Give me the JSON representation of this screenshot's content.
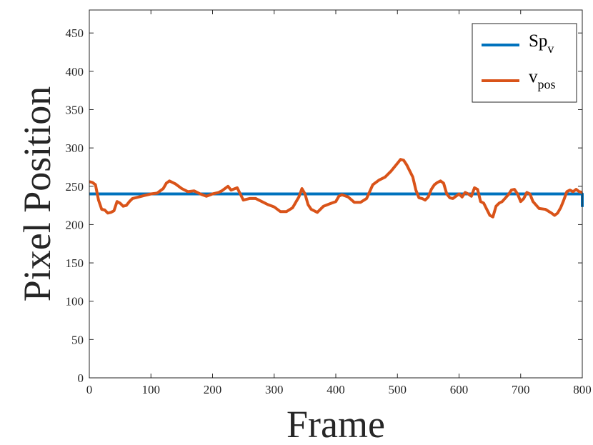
{
  "chart_data": {
    "type": "line",
    "xlabel": "Frame",
    "ylabel": "Pixel Position",
    "xlim": [
      0,
      800
    ],
    "ylim": [
      0,
      480
    ],
    "x_ticks": [
      "0",
      "100",
      "200",
      "300",
      "400",
      "500",
      "600",
      "700",
      "800"
    ],
    "y_ticks": [
      "0",
      "50",
      "100",
      "150",
      "200",
      "250",
      "300",
      "350",
      "400",
      "450"
    ],
    "grid": false,
    "legend_position": "top-right",
    "series": [
      {
        "name": "Sp_v",
        "legend_main": "Sp",
        "legend_sub": "v",
        "color": "#0072BD",
        "x": [
          0,
          800,
          800
        ],
        "y": [
          240,
          240,
          223
        ]
      },
      {
        "name": "v_pos",
        "legend_main": "v",
        "legend_sub": "pos",
        "color": "#D95319",
        "x": [
          0,
          5,
          10,
          15,
          20,
          25,
          30,
          35,
          40,
          45,
          50,
          55,
          60,
          65,
          70,
          80,
          90,
          100,
          110,
          120,
          125,
          130,
          140,
          150,
          160,
          170,
          180,
          190,
          200,
          210,
          215,
          220,
          225,
          230,
          240,
          245,
          250,
          260,
          270,
          280,
          290,
          300,
          310,
          320,
          330,
          340,
          345,
          350,
          355,
          360,
          370,
          380,
          390,
          400,
          405,
          410,
          420,
          430,
          440,
          450,
          460,
          470,
          480,
          490,
          500,
          505,
          510,
          515,
          520,
          525,
          530,
          535,
          540,
          545,
          550,
          555,
          560,
          565,
          570,
          575,
          580,
          585,
          590,
          600,
          605,
          610,
          615,
          620,
          625,
          630,
          635,
          640,
          645,
          650,
          655,
          660,
          665,
          670,
          680,
          685,
          690,
          695,
          700,
          705,
          710,
          715,
          720,
          730,
          740,
          750,
          755,
          760,
          765,
          770,
          775,
          780,
          785,
          790,
          795,
          800
        ],
        "y": [
          256,
          255,
          252,
          232,
          220,
          219,
          215,
          216,
          218,
          230,
          228,
          224,
          225,
          230,
          234,
          236,
          238,
          240,
          241,
          247,
          254,
          257,
          253,
          247,
          243,
          244,
          240,
          237,
          240,
          242,
          244,
          247,
          250,
          245,
          248,
          240,
          232,
          234,
          234,
          230,
          226,
          223,
          217,
          217,
          222,
          236,
          247,
          240,
          226,
          220,
          216,
          224,
          227,
          230,
          237,
          239,
          236,
          229,
          229,
          234,
          252,
          258,
          262,
          270,
          280,
          285,
          284,
          278,
          270,
          262,
          245,
          235,
          234,
          232,
          236,
          246,
          252,
          255,
          257,
          254,
          240,
          235,
          234,
          240,
          236,
          242,
          240,
          237,
          248,
          246,
          230,
          228,
          220,
          212,
          210,
          224,
          228,
          230,
          239,
          245,
          246,
          240,
          230,
          234,
          242,
          240,
          230,
          221,
          220,
          215,
          212,
          215,
          222,
          232,
          243,
          245,
          243,
          246,
          243,
          242
        ]
      }
    ]
  }
}
